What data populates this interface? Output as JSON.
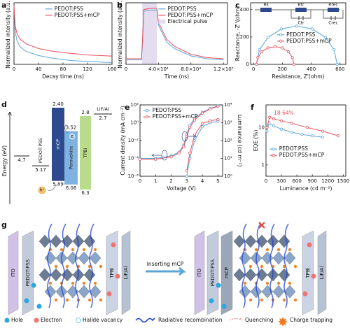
{
  "chart_data": [
    {
      "type": "line",
      "panel_label": "a",
      "xlabel": "Decay time (ns)",
      "ylabel": "Normalized intensity (a.u.)",
      "x": [
        0,
        2,
        5,
        10,
        20,
        40,
        60,
        80,
        100,
        120,
        140,
        160
      ],
      "xlim": [
        0,
        160
      ],
      "xticks": [
        0,
        40,
        80,
        120,
        160
      ],
      "ylim": [
        0,
        1.05
      ],
      "series": [
        {
          "name": "PEDOT:PSS",
          "color": "#5aa6d8",
          "values": [
            1,
            0.55,
            0.4,
            0.3,
            0.22,
            0.15,
            0.11,
            0.08,
            0.06,
            0.05,
            0.04,
            0.03
          ]
        },
        {
          "name": "PEDOT:PSS+mCP",
          "color": "#e8505b",
          "values": [
            1,
            0.65,
            0.52,
            0.43,
            0.35,
            0.27,
            0.23,
            0.2,
            0.18,
            0.16,
            0.15,
            0.14
          ]
        }
      ],
      "legend": "upper right"
    },
    {
      "type": "line",
      "panel_label": "b",
      "xlabel": "Time (ns)",
      "ylabel": "Normalized intensity (a.u.)",
      "x": [
        0,
        19000,
        20000,
        22000,
        30000,
        38000,
        40000,
        50000,
        60000,
        80000,
        100000,
        120000
      ],
      "xlim": [
        0,
        125000
      ],
      "xticks": [
        0,
        {
          "value": 40000,
          "label": "4.0×10⁴"
        },
        {
          "value": 80000,
          "label": "8.0×10⁴"
        },
        {
          "value": 120000,
          "label": "1.2×10⁵"
        }
      ],
      "ylim": [
        0,
        1.1
      ],
      "series": [
        {
          "name": "PEDOT:PSS",
          "color": "#5aa6d8",
          "values": [
            0.08,
            0.08,
            0.3,
            0.95,
            0.97,
            0.97,
            0.7,
            0.4,
            0.28,
            0.15,
            0.1,
            0.08
          ]
        },
        {
          "name": "PEDOT:PSS+mCP",
          "color": "#e8505b",
          "values": [
            0.1,
            0.1,
            0.35,
            0.98,
            1,
            1,
            0.75,
            0.45,
            0.32,
            0.18,
            0.12,
            0.1
          ]
        }
      ],
      "shaded_region": {
        "name": "Electrical pulse",
        "x": [
          20000,
          38000
        ],
        "color": "#e4dcef"
      },
      "legend": "upper right"
    },
    {
      "type": "line",
      "panel_label": "c",
      "xlabel": "Resistance, Z'(ohm)",
      "ylabel": "Reactance, -Z''(ohm)",
      "xlim": [
        -20,
        640
      ],
      "xticks": [
        0,
        200,
        400,
        600
      ],
      "ylim": [
        0,
        450
      ],
      "yticks": [
        0,
        200,
        400
      ],
      "markers": true,
      "series": [
        {
          "name": "PEDOT:PSS",
          "color": "#5aa6d8",
          "x": [
            20,
            41,
            102,
            193,
            300,
            407,
            498,
            559,
            580
          ],
          "values": [
            0,
            107,
            198,
            259,
            280,
            259,
            198,
            107,
            0
          ]
        },
        {
          "name": "PEDOT:PSS+mCP",
          "color": "#e8505b",
          "x": [
            20,
            30,
            58,
            100,
            150,
            200,
            242,
            270,
            280
          ],
          "values": [
            0,
            50,
            92,
            120,
            130,
            120,
            92,
            50,
            0
          ]
        }
      ],
      "circuit_labels": [
        "Rs",
        "Rtr",
        "Rrec",
        "Ctr",
        "Crec"
      ],
      "legend": "center"
    },
    {
      "type": "line",
      "panel_label": "e",
      "xlabel": "Voltage (V)",
      "ylabel": "Current density (mA cm⁻²)",
      "y2label": "Luminance (cd m⁻²)",
      "x": [
        0,
        1,
        2,
        2.5,
        2.8,
        3,
        3.2,
        3.5,
        4,
        4.5,
        5
      ],
      "xlim": [
        0,
        5.3
      ],
      "xticks": [
        0,
        1,
        2,
        3,
        4,
        5
      ],
      "ylim": [
        1e-06,
        100
      ],
      "ylog": true,
      "yticks": [
        {
          "value": 1e-06,
          "label": "10⁻⁶"
        },
        {
          "value": 0.0001,
          "label": "10⁻⁴"
        },
        {
          "value": 0.01,
          "label": "10⁻²"
        },
        {
          "value": 1,
          "label": "10⁰"
        },
        {
          "value": 100,
          "label": "10²"
        }
      ],
      "y2lim": [
        1,
        10000
      ],
      "y2log": true,
      "y2ticks": [
        {
          "value": 1,
          "label": "10⁰"
        },
        {
          "value": 10,
          "label": "10¹"
        },
        {
          "value": 100,
          "label": "10²"
        },
        {
          "value": 1000,
          "label": "10³"
        },
        {
          "value": 10000,
          "label": "10⁴"
        }
      ],
      "markers": true,
      "series": [
        {
          "name": "PEDOT:PSS",
          "color": "#5aa6d8",
          "values": [
            0.0001,
            0.0001,
            0.0002,
            0.0005,
            0.003,
            0.05,
            0.5,
            3,
            15,
            40,
            80
          ]
        },
        {
          "name": "PEDOT:PSS+mCP",
          "color": "#e8505b",
          "values": [
            8e-05,
            8e-05,
            0.00015,
            0.0004,
            0.002,
            0.03,
            0.3,
            2,
            12,
            35,
            70
          ]
        },
        {
          "color": "#5aa6d8",
          "axis": "y2",
          "values": [
            null,
            null,
            null,
            null,
            null,
            1,
            10,
            100,
            600,
            1000,
            1200
          ]
        },
        {
          "color": "#e8505b",
          "axis": "y2",
          "values": [
            null,
            null,
            null,
            null,
            null,
            2,
            20,
            200,
            900,
            1300,
            1500
          ]
        }
      ],
      "legend": "upper left"
    },
    {
      "type": "line",
      "panel_label": "f",
      "xlabel": "Luminance (cd m⁻²)",
      "ylabel": "EQE (%)",
      "xlim": [
        0,
        1550
      ],
      "xticks": [
        0,
        300,
        600,
        900,
        1200,
        1500
      ],
      "ylim": [
        0.5,
        40
      ],
      "ylog": true,
      "yticks": [
        1,
        10
      ],
      "markers": true,
      "series": [
        {
          "name": "PEDOT:PSS",
          "color": "#5aa6d8",
          "x": [
            20,
            60,
            150,
            300,
            500,
            700,
            900,
            1100
          ],
          "values": [
            8,
            13,
            11,
            9,
            7.5,
            6.5,
            6,
            5.5
          ]
        },
        {
          "name": "PEDOT:PSS+mCP",
          "color": "#e8505b",
          "x": [
            20,
            70,
            150,
            300,
            500,
            800,
            1100,
            1400
          ],
          "values": [
            10,
            18.64,
            17,
            15,
            13,
            10,
            8,
            6
          ]
        }
      ],
      "annotation": "18.64%",
      "legend": "lower left"
    }
  ],
  "energy_diagram": {
    "panel_label": "d",
    "axis_label": "Energy (eV)",
    "layers": [
      {
        "levels": [
          "4.7"
        ],
        "color": "#8c8c8c"
      },
      {
        "name": "PEDOT:PSS",
        "levels": [
          "5.17"
        ],
        "color": "#8c8c8c"
      },
      {
        "name": "mCP",
        "levels": [
          "2.40",
          "5.89"
        ],
        "color": "#2e4a8f"
      },
      {
        "name": "Perovskite",
        "levels": [
          "3.52",
          "6.06"
        ],
        "color": "#7fb2e0"
      },
      {
        "name": "TPBi",
        "levels": [
          "2.8",
          "6.3"
        ],
        "color": "#b9dc8c"
      },
      {
        "name": "LiF/Al",
        "levels": [
          "2.7"
        ],
        "color": "#8c8c8c"
      }
    ],
    "carriers": [
      "e",
      "h⁺"
    ]
  },
  "schematic": {
    "panel_label": "g",
    "left_layers": [
      "ITO",
      "PEDOT:PSS",
      "TPBi",
      "LiF/Al"
    ],
    "arrow_label": "Inserting mCP",
    "right_layers": [
      "ITO",
      "PEDOT:PSS",
      "mCP",
      "TPBi",
      "LiF/Al"
    ],
    "legend": [
      "Hole",
      "Electron",
      "Halide vacancy",
      "Radiative recombination",
      "Quenching",
      "Charge trapping"
    ]
  }
}
